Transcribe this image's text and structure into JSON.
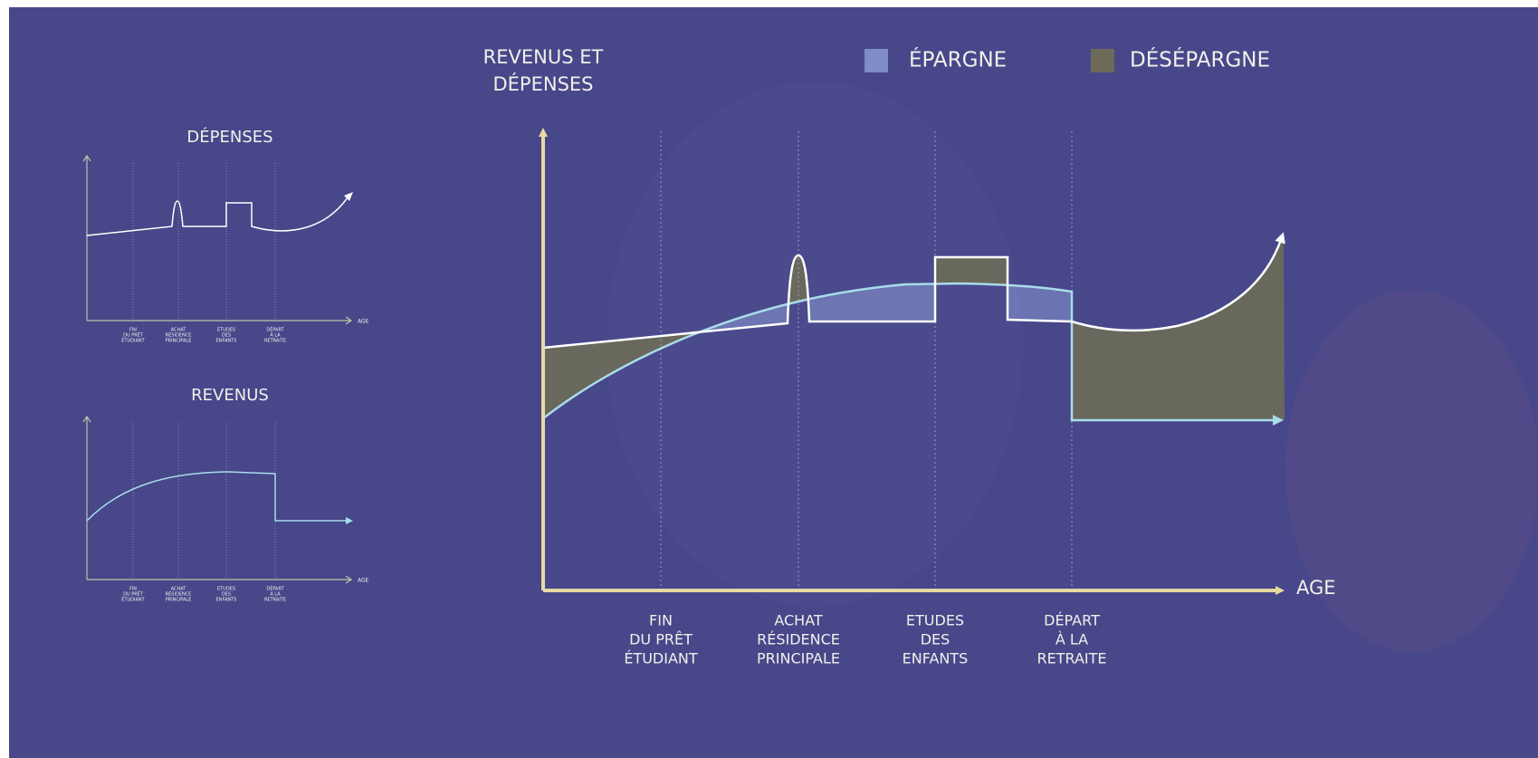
{
  "main": {
    "y_label": [
      "REVENUS ET",
      "DÉPENSES"
    ],
    "x_label": "AGE",
    "milestones": [
      [
        "FIN",
        "DU PRÊT",
        "ÉTUDIANT"
      ],
      [
        "ACHAT",
        "RÉSIDENCE",
        "PRINCIPALE"
      ],
      [
        "ETUDES",
        "DES",
        "ENFANTS"
      ],
      [
        "DÉPART",
        "À LA",
        "RETRAITE"
      ]
    ]
  },
  "legend": [
    "ÉPARGNE",
    "DÉSÉPARGNE"
  ],
  "small_charts": [
    {
      "title": "DÉPENSES",
      "x_label": "AGE",
      "milestones": [
        [
          "FIN",
          "DU PRÊT",
          "ÉTUDIANT"
        ],
        [
          "ACHAT",
          "RÉSIDENCE",
          "PRINCIPALE"
        ],
        [
          "ETUDES",
          "DES",
          "ENFANTS"
        ],
        [
          "DÉPART",
          "À LA",
          "RETRAITE"
        ]
      ]
    },
    {
      "title": "REVENUS",
      "x_label": "AGE",
      "milestones": [
        [
          "FIN",
          "DU PRÊT",
          "ÉTUDIANT"
        ],
        [
          "ACHAT",
          "RÉSIDENCE",
          "PRINCIPALE"
        ],
        [
          "ETUDES",
          "DES",
          "ENFANTS"
        ],
        [
          "DÉPART",
          "À LA",
          "RETRAITE"
        ]
      ]
    }
  ]
}
